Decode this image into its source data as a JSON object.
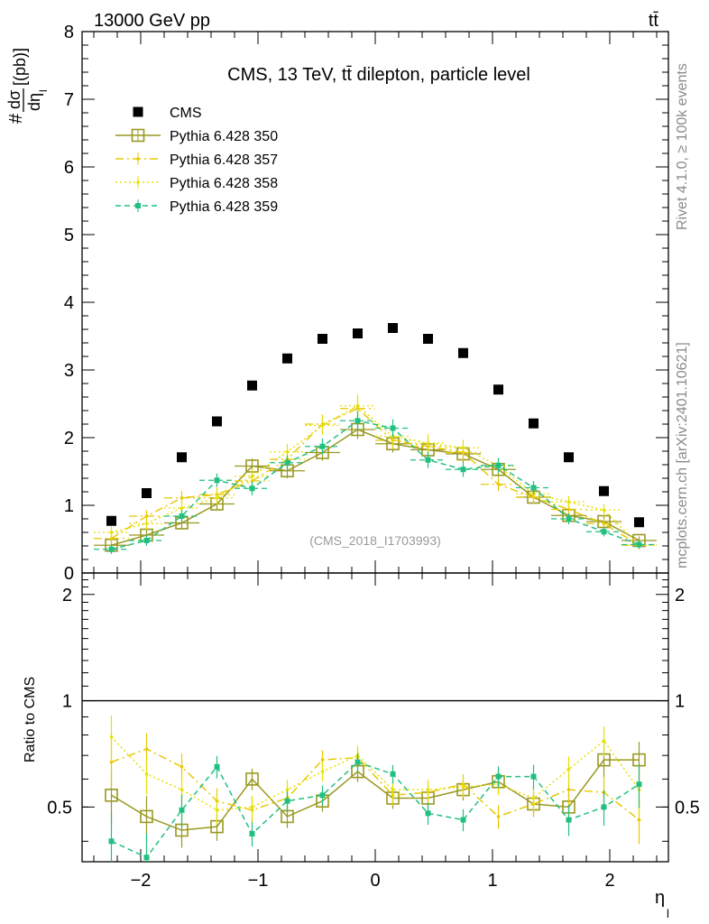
{
  "header": {
    "left": "13000 GeV pp",
    "right": "tt̄"
  },
  "side": {
    "rivet": "Rivet 4.1.0, ≥ 100k events",
    "site": "mcplots.cern.ch [arXiv:2401.10621]"
  },
  "chart_data": {
    "type": "scatter",
    "title": "CMS, 13 TeV, tt̄ dilepton, particle level",
    "watermark": "(CMS_2018_I1703993)",
    "ylabel": "#dσ/dη_l [(pb)]",
    "ylabel_parts": {
      "hash": "#",
      "num": "dσ",
      "den": "dη",
      "sub": "l",
      "unit": "[(pb)]"
    },
    "xlabel": "η",
    "xlabel_sub": "l",
    "ratio_ylabel": "Ratio to CMS",
    "xlim": [
      -2.5,
      2.5
    ],
    "ylim": [
      0,
      8
    ],
    "ratio_ylim": [
      0.35,
      2.3
    ],
    "x_ticks": [
      "−2",
      "−1",
      "0",
      "1",
      "2"
    ],
    "y_ticks": [
      "0",
      "1",
      "2",
      "3",
      "4",
      "5",
      "6",
      "7",
      "8"
    ],
    "ratio_ticks": [
      "0.5",
      "1",
      "2"
    ],
    "x": [
      -2.25,
      -1.95,
      -1.65,
      -1.35,
      -1.05,
      -0.75,
      -0.45,
      -0.15,
      0.15,
      0.45,
      0.75,
      1.05,
      1.35,
      1.65,
      1.95,
      2.25
    ],
    "series": [
      {
        "name": "CMS",
        "color": "#000000",
        "style": "data",
        "values": [
          0.77,
          1.18,
          1.71,
          2.24,
          2.77,
          3.17,
          3.46,
          3.54,
          3.62,
          3.46,
          3.25,
          2.71,
          2.21,
          1.71,
          1.21,
          0.75
        ],
        "ratio": []
      },
      {
        "name": "Pythia 6.428 350",
        "color": "#999922",
        "style": "solid-open-square",
        "values": [
          0.41,
          0.56,
          0.74,
          1.02,
          1.58,
          1.51,
          1.78,
          2.12,
          1.91,
          1.82,
          1.76,
          1.53,
          1.12,
          0.85,
          0.76,
          0.48
        ],
        "errors": [
          0.07,
          0.08,
          0.08,
          0.09,
          0.11,
          0.11,
          0.12,
          0.14,
          0.13,
          0.12,
          0.12,
          0.11,
          0.09,
          0.08,
          0.08,
          0.06
        ],
        "ratio": [
          0.54,
          0.47,
          0.43,
          0.44,
          0.6,
          0.47,
          0.52,
          0.63,
          0.53,
          0.53,
          0.56,
          0.59,
          0.51,
          0.5,
          0.68,
          0.68
        ]
      },
      {
        "name": "Pythia 6.428 357",
        "color": "#e8c800",
        "style": "dashdot",
        "values": [
          0.51,
          0.84,
          1.11,
          1.16,
          1.36,
          1.68,
          2.2,
          2.43,
          1.96,
          1.87,
          1.78,
          1.31,
          1.12,
          0.94,
          0.73,
          0.41
        ],
        "errors": [
          0.08,
          0.09,
          0.1,
          0.1,
          0.11,
          0.12,
          0.14,
          0.16,
          0.13,
          0.12,
          0.12,
          0.1,
          0.09,
          0.09,
          0.08,
          0.06
        ],
        "ratio": [
          0.67,
          0.73,
          0.65,
          0.52,
          0.49,
          0.53,
          0.68,
          0.69,
          0.54,
          0.55,
          0.58,
          0.47,
          0.51,
          0.56,
          0.55,
          0.46
        ]
      },
      {
        "name": "Pythia 6.428 358",
        "color": "#e8e000",
        "style": "dotted",
        "values": [
          0.6,
          0.73,
          0.96,
          1.11,
          1.43,
          1.79,
          2.18,
          2.47,
          2.02,
          1.92,
          1.85,
          1.58,
          1.17,
          1.05,
          0.93,
          0.41
        ],
        "errors": [
          0.09,
          0.09,
          0.1,
          0.1,
          0.11,
          0.12,
          0.14,
          0.16,
          0.13,
          0.13,
          0.12,
          0.11,
          0.09,
          0.09,
          0.09,
          0.06
        ],
        "ratio": [
          0.79,
          0.62,
          0.56,
          0.49,
          0.5,
          0.56,
          0.63,
          0.7,
          0.56,
          0.56,
          0.57,
          0.58,
          0.53,
          0.64,
          0.77,
          0.56
        ]
      },
      {
        "name": "Pythia 6.428 359",
        "color": "#22c080",
        "style": "dashed-filled-square",
        "values": [
          0.35,
          0.48,
          0.84,
          1.37,
          1.25,
          1.63,
          1.87,
          2.25,
          2.14,
          1.67,
          1.53,
          1.59,
          1.26,
          0.8,
          0.61,
          0.42
        ],
        "errors": [
          0.07,
          0.08,
          0.09,
          0.1,
          0.1,
          0.11,
          0.12,
          0.14,
          0.13,
          0.12,
          0.11,
          0.11,
          0.1,
          0.08,
          0.07,
          0.06
        ],
        "ratio": [
          0.4,
          0.36,
          0.49,
          0.65,
          0.42,
          0.52,
          0.54,
          0.67,
          0.62,
          0.48,
          0.46,
          0.61,
          0.61,
          0.46,
          0.5,
          0.58
        ]
      }
    ]
  }
}
